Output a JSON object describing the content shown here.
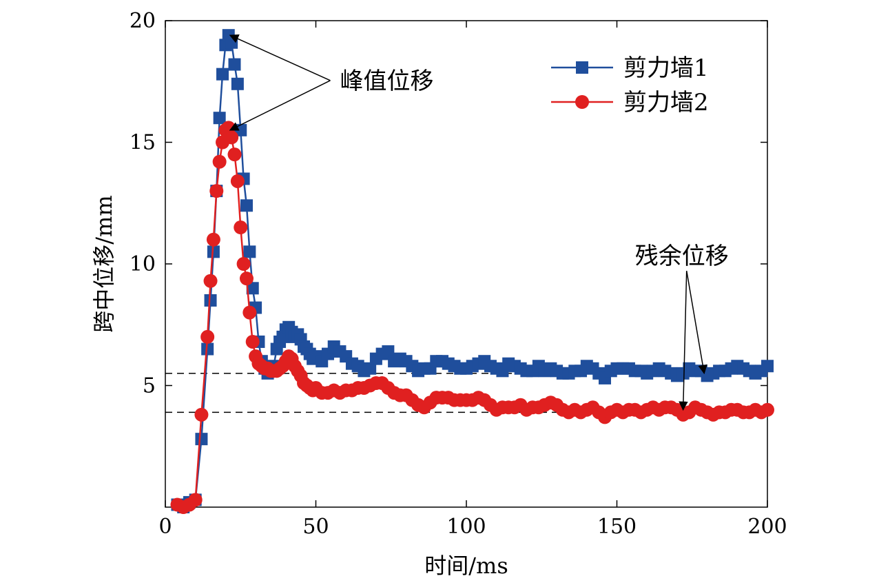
{
  "chart_data": {
    "type": "line",
    "xlabel": "时间/ms",
    "ylabel": "跨中位移/mm",
    "xlim": [
      0,
      200
    ],
    "ylim": [
      0,
      20
    ],
    "xticks": [
      0,
      50,
      100,
      150,
      200
    ],
    "yticks": [
      5,
      10,
      15,
      20
    ],
    "xtick_labels": [
      "0",
      "50",
      "100",
      "150",
      "200"
    ],
    "ytick_labels": [
      "5",
      "10",
      "15",
      "20"
    ],
    "grid": false,
    "legend_position": "top-right",
    "series": [
      {
        "name": "剪力墙1",
        "color": "#1f4e9c",
        "marker": "square",
        "x": [
          4,
          6,
          8,
          10,
          12,
          14,
          15,
          16,
          17,
          18,
          19,
          20,
          21,
          22,
          23,
          24,
          25,
          26,
          27,
          28,
          29,
          30,
          31,
          32,
          33,
          34,
          35,
          36,
          37,
          38,
          39,
          40,
          41,
          42,
          43,
          44,
          45,
          46,
          47,
          48,
          49,
          50,
          52,
          54,
          56,
          58,
          60,
          62,
          64,
          66,
          68,
          70,
          72,
          74,
          76,
          78,
          80,
          82,
          84,
          86,
          88,
          90,
          92,
          94,
          96,
          98,
          100,
          102,
          104,
          106,
          108,
          110,
          112,
          114,
          116,
          118,
          120,
          122,
          124,
          126,
          128,
          130,
          132,
          134,
          136,
          138,
          140,
          142,
          144,
          146,
          148,
          150,
          152,
          154,
          156,
          158,
          160,
          162,
          164,
          166,
          168,
          170,
          172,
          174,
          176,
          178,
          180,
          182,
          184,
          186,
          188,
          190,
          192,
          194,
          196,
          198,
          200
        ],
        "y": [
          0.1,
          0.0,
          0.2,
          0.3,
          2.8,
          6.5,
          8.5,
          10.5,
          13.0,
          16.0,
          17.8,
          19.0,
          19.4,
          19.1,
          18.2,
          17.4,
          15.5,
          13.5,
          12.4,
          10.5,
          9.0,
          8.2,
          6.8,
          6.0,
          5.7,
          5.5,
          5.6,
          5.8,
          6.5,
          6.8,
          7.0,
          7.3,
          7.4,
          7.2,
          7.0,
          7.1,
          6.9,
          6.6,
          6.5,
          6.3,
          6.1,
          6.2,
          6.0,
          6.3,
          6.6,
          6.4,
          6.2,
          5.9,
          5.8,
          5.6,
          5.7,
          6.1,
          6.3,
          6.4,
          6.0,
          6.1,
          6.0,
          5.8,
          5.6,
          5.7,
          5.7,
          6.0,
          6.0,
          5.9,
          5.8,
          5.7,
          5.7,
          5.8,
          5.9,
          6.0,
          5.8,
          5.7,
          5.6,
          5.9,
          5.8,
          5.7,
          5.6,
          5.6,
          5.8,
          5.6,
          5.7,
          5.6,
          5.5,
          5.5,
          5.6,
          5.6,
          5.8,
          5.7,
          5.5,
          5.3,
          5.6,
          5.7,
          5.7,
          5.7,
          5.6,
          5.6,
          5.5,
          5.6,
          5.7,
          5.6,
          5.5,
          5.4,
          5.5,
          5.7,
          5.6,
          5.6,
          5.4,
          5.5,
          5.6,
          5.6,
          5.7,
          5.8,
          5.7,
          5.6,
          5.5,
          5.6,
          5.8
        ]
      },
      {
        "name": "剪力墙2",
        "color": "#e02020",
        "marker": "circle",
        "x": [
          4,
          6,
          8,
          10,
          12,
          14,
          15,
          16,
          17,
          18,
          19,
          20,
          21,
          22,
          23,
          24,
          25,
          26,
          27,
          28,
          29,
          30,
          31,
          32,
          33,
          34,
          35,
          36,
          37,
          38,
          39,
          40,
          41,
          42,
          43,
          44,
          45,
          46,
          47,
          48,
          49,
          50,
          52,
          54,
          56,
          58,
          60,
          62,
          64,
          66,
          68,
          70,
          72,
          74,
          76,
          78,
          80,
          82,
          84,
          86,
          88,
          90,
          92,
          94,
          96,
          98,
          100,
          102,
          104,
          106,
          108,
          110,
          112,
          114,
          116,
          118,
          120,
          122,
          124,
          126,
          128,
          130,
          132,
          134,
          136,
          138,
          140,
          142,
          144,
          146,
          148,
          150,
          152,
          154,
          156,
          158,
          160,
          162,
          164,
          166,
          168,
          170,
          172,
          174,
          176,
          178,
          180,
          182,
          184,
          186,
          188,
          190,
          192,
          194,
          196,
          198,
          200
        ],
        "y": [
          0.1,
          0.0,
          0.1,
          0.3,
          3.8,
          7.0,
          9.3,
          11.0,
          13.0,
          14.2,
          15.0,
          15.5,
          15.6,
          15.2,
          14.5,
          13.4,
          11.5,
          10.0,
          9.4,
          8.0,
          6.8,
          6.2,
          5.9,
          5.8,
          5.7,
          5.7,
          5.6,
          5.6,
          5.6,
          5.7,
          5.8,
          6.0,
          6.2,
          6.1,
          5.8,
          5.6,
          5.4,
          5.1,
          5.0,
          4.9,
          4.8,
          4.9,
          4.7,
          4.7,
          4.8,
          4.7,
          4.8,
          4.8,
          4.9,
          4.9,
          5.0,
          5.1,
          5.1,
          4.9,
          4.7,
          4.6,
          4.6,
          4.4,
          4.2,
          4.1,
          4.3,
          4.5,
          4.5,
          4.5,
          4.4,
          4.4,
          4.4,
          4.4,
          4.5,
          4.4,
          4.2,
          4.0,
          4.1,
          4.1,
          4.1,
          4.2,
          4.0,
          4.1,
          4.1,
          4.2,
          4.3,
          4.2,
          4.0,
          3.9,
          4.0,
          3.9,
          4.0,
          4.1,
          3.9,
          3.7,
          3.9,
          4.0,
          3.9,
          4.0,
          4.0,
          3.9,
          4.0,
          4.1,
          4.0,
          4.1,
          4.1,
          4.0,
          3.8,
          3.9,
          4.1,
          4.0,
          3.9,
          3.8,
          3.9,
          3.9,
          4.0,
          4.0,
          3.9,
          3.9,
          4.0,
          3.9,
          4.0
        ]
      }
    ],
    "reference_lines": [
      {
        "axis": "y",
        "value": 5.5,
        "style": "dashed"
      },
      {
        "axis": "y",
        "value": 3.9,
        "style": "dashed"
      }
    ],
    "annotations": [
      {
        "text": "峰值位移",
        "text_at": [
          58,
          17.2
        ],
        "arrows_to": [
          [
            21.5,
            19.4
          ],
          [
            21.5,
            15.5
          ]
        ]
      },
      {
        "text": "残余位移",
        "text_at": [
          156,
          10.0
        ],
        "arrows_to": [
          [
            179,
            5.5
          ],
          [
            172,
            4.0
          ]
        ]
      }
    ]
  }
}
